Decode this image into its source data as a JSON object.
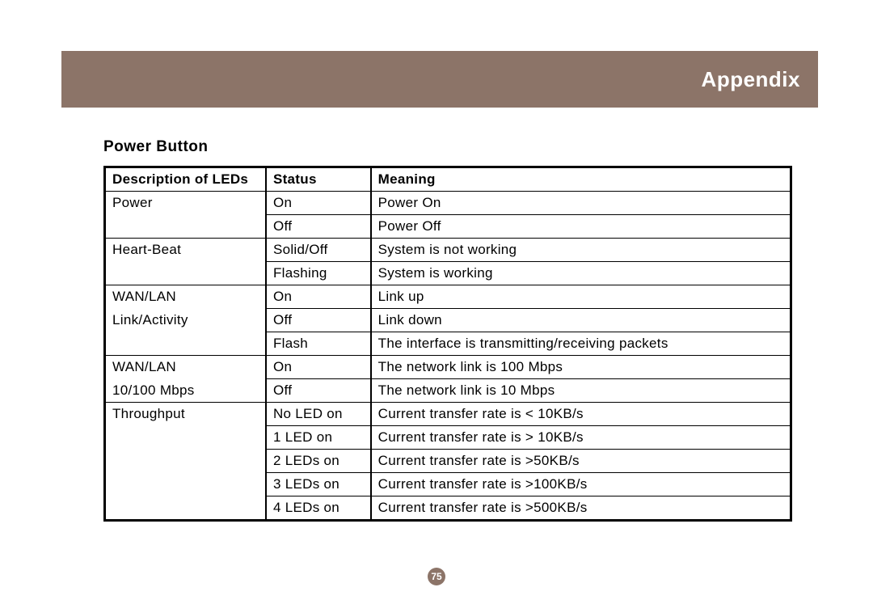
{
  "banner": {
    "title": "Appendix",
    "bg_color": "#8c7468"
  },
  "section": {
    "heading": "Power  Button"
  },
  "table": {
    "columns": [
      "Description of LEDs",
      "Status",
      "Meaning"
    ],
    "rows": [
      {
        "cells": [
          "Power",
          "On",
          "Power On"
        ],
        "borders": [
          "nb",
          "",
          ""
        ]
      },
      {
        "cells": [
          "",
          "Off",
          "Power Off"
        ],
        "borders": [
          "nt",
          "",
          ""
        ]
      },
      {
        "cells": [
          "Heart-Beat",
          "Solid/Off",
          "System is not working"
        ],
        "borders": [
          "nb",
          "",
          ""
        ]
      },
      {
        "cells": [
          "",
          "Flashing",
          "System is working"
        ],
        "borders": [
          "nt",
          "",
          ""
        ]
      },
      {
        "cells": [
          "WAN/LAN",
          "On",
          "Link  up"
        ],
        "borders": [
          "nb",
          "",
          ""
        ]
      },
      {
        "cells": [
          "Link/Activity",
          "Off",
          "Link  down"
        ],
        "borders": [
          "ntnb",
          "",
          ""
        ]
      },
      {
        "cells": [
          "",
          "Flash",
          "The  interface  is transmitting/receiving  packets"
        ],
        "borders": [
          "nt",
          "",
          ""
        ]
      },
      {
        "cells": [
          "WAN/LAN",
          "On",
          "The network link is 100 Mbps"
        ],
        "borders": [
          "nb",
          "",
          ""
        ]
      },
      {
        "cells": [
          "10/100 Mbps",
          "Off",
          "The network link is 10 Mbps"
        ],
        "borders": [
          "nt",
          "",
          ""
        ]
      },
      {
        "cells": [
          "Throughput",
          "No LED on",
          "Current transfer rate is < 10KB/s"
        ],
        "borders": [
          "nb",
          "",
          ""
        ]
      },
      {
        "cells": [
          "",
          "1 LED on",
          "Current transfer rate is > 10KB/s"
        ],
        "borders": [
          "ntnb",
          "",
          ""
        ]
      },
      {
        "cells": [
          "",
          "2 LEDs on",
          "Current transfer rate is  >50KB/s"
        ],
        "borders": [
          "ntnb",
          "",
          ""
        ]
      },
      {
        "cells": [
          "",
          "3 LEDs on",
          "Current transfer rate is  >100KB/s"
        ],
        "borders": [
          "ntnb",
          "",
          ""
        ]
      },
      {
        "cells": [
          "",
          "4 LEDs on",
          "Current transfer rate is  >500KB/s"
        ],
        "borders": [
          "nt",
          "",
          ""
        ]
      }
    ]
  },
  "page_number": {
    "value": "75",
    "bg_color": "#8c7468"
  }
}
